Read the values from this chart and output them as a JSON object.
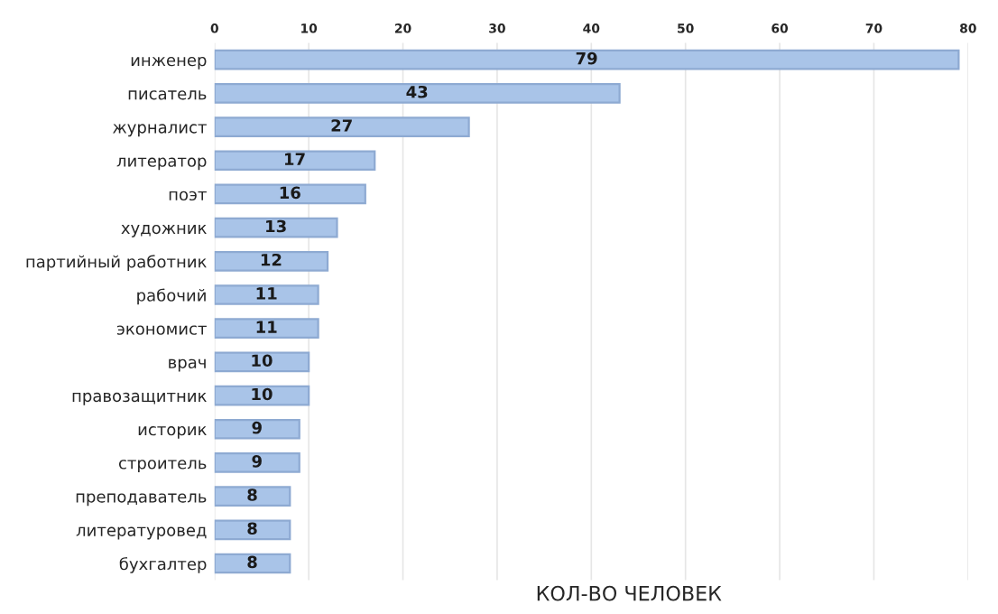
{
  "chart_data": {
    "type": "bar",
    "orientation": "horizontal",
    "xlabel": "КОЛ-ВО ЧЕЛОВЕК",
    "categories": [
      "инженер",
      "писатель",
      "журналист",
      "литератор",
      "поэт",
      "художник",
      "партийный работник",
      "рабочий",
      "экономист",
      "врач",
      "правозащитник",
      "историк",
      "строитель",
      "преподаватель",
      "литературовед",
      "бухгалтер"
    ],
    "values": [
      79,
      43,
      27,
      17,
      16,
      13,
      12,
      11,
      11,
      10,
      10,
      9,
      9,
      8,
      8,
      8
    ],
    "color": "#a9c4e8",
    "xlim": [
      0,
      80
    ],
    "xticks": [
      0,
      10,
      20,
      30,
      40,
      50,
      60,
      70,
      80
    ],
    "grid": "x",
    "data_labels": true,
    "legend": false
  }
}
